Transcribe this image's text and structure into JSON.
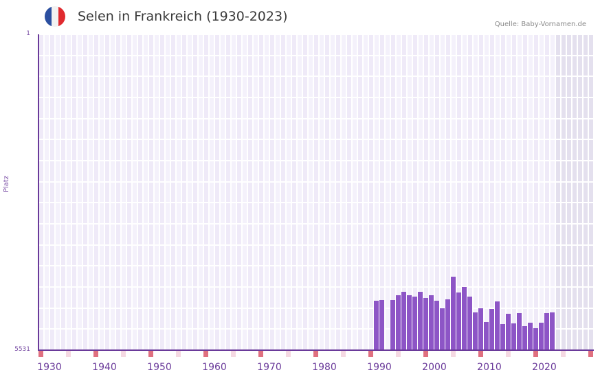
{
  "header": {
    "title": "Selen in Frankreich (1930-2023)",
    "source": "Quelle: Baby-Vornamen.de",
    "flag_colors": [
      "#2b4fa0",
      "#f2f2f2",
      "#e02a2f"
    ]
  },
  "axis": {
    "y_title": "Platz",
    "y_top_label": "1",
    "y_bottom_label": "5531"
  },
  "colors": {
    "bar": "#8d55c6",
    "axis": "#6a3a9a",
    "grid_a": "#efeaf8",
    "grid_b": "#f4f1fb",
    "future_shade": "#e4e0ee",
    "decade_marker": "#e07080",
    "half_decade_marker": "#f5d9e2"
  },
  "chart_data": {
    "type": "bar",
    "title": "Selen in Frankreich (1930-2023)",
    "xlabel": "",
    "ylabel": "Platz",
    "y_inverted": true,
    "ylim": [
      5531,
      1
    ],
    "xlim": [
      1930,
      2030
    ],
    "x_ticks": [
      "1930",
      "1940",
      "1950",
      "1960",
      "1970",
      "1980",
      "1990",
      "2000",
      "2010",
      "2020"
    ],
    "grid": true,
    "categories": [
      1991,
      1992,
      1993,
      1994,
      1995,
      1996,
      1997,
      1998,
      1999,
      2000,
      2001,
      2002,
      2003,
      2004,
      2005,
      2006,
      2007,
      2008,
      2009,
      2010,
      2011,
      2012,
      2013,
      2014,
      2015,
      2016,
      2017,
      2018,
      2019,
      2020,
      2021,
      2022,
      2023
    ],
    "values": [
      4665,
      4653,
      null,
      4653,
      4569,
      4509,
      4569,
      4593,
      4509,
      4617,
      4569,
      4665,
      4798,
      4641,
      4244,
      4521,
      4425,
      4593,
      4870,
      4798,
      5038,
      4810,
      4677,
      5074,
      4894,
      5062,
      4882,
      5110,
      5050,
      5146,
      5050,
      4882,
      4870
    ]
  }
}
